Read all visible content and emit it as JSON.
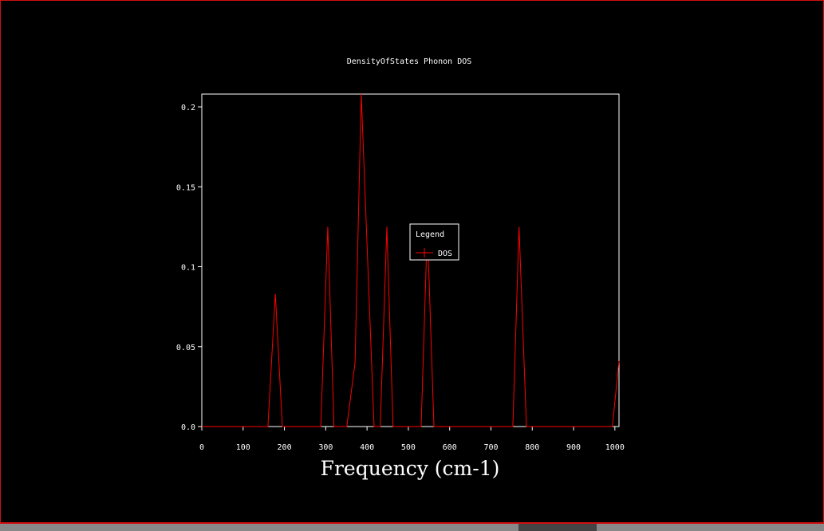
{
  "chart_data": {
    "type": "line",
    "title": "DensityOfStates Phonon DOS",
    "x_label": "Frequency (cm-1)",
    "legend_title": "Legend",
    "x": [
      0,
      160,
      178,
      195,
      288,
      305,
      320,
      351,
      371,
      386,
      417,
      432,
      448,
      463,
      531,
      546,
      562,
      753,
      768,
      786,
      994,
      1010
    ],
    "series": [
      {
        "name": "DOS",
        "color": "#ff0000",
        "values": [
          0,
          0,
          0.083,
          0,
          0,
          0.125,
          0,
          0,
          0.04,
          0.208,
          0,
          0,
          0.125,
          0,
          0,
          0.125,
          0,
          0,
          0.125,
          0,
          0,
          0.041
        ]
      }
    ],
    "xlim": [
      0,
      1010
    ],
    "ylim": [
      0,
      0.208
    ],
    "xticks": [
      0,
      100,
      200,
      300,
      400,
      500,
      600,
      700,
      800,
      900,
      1000
    ],
    "yticks": [
      {
        "value": 0,
        "label": "0.0"
      },
      0.05,
      0.1,
      0.15,
      0.2
    ]
  }
}
